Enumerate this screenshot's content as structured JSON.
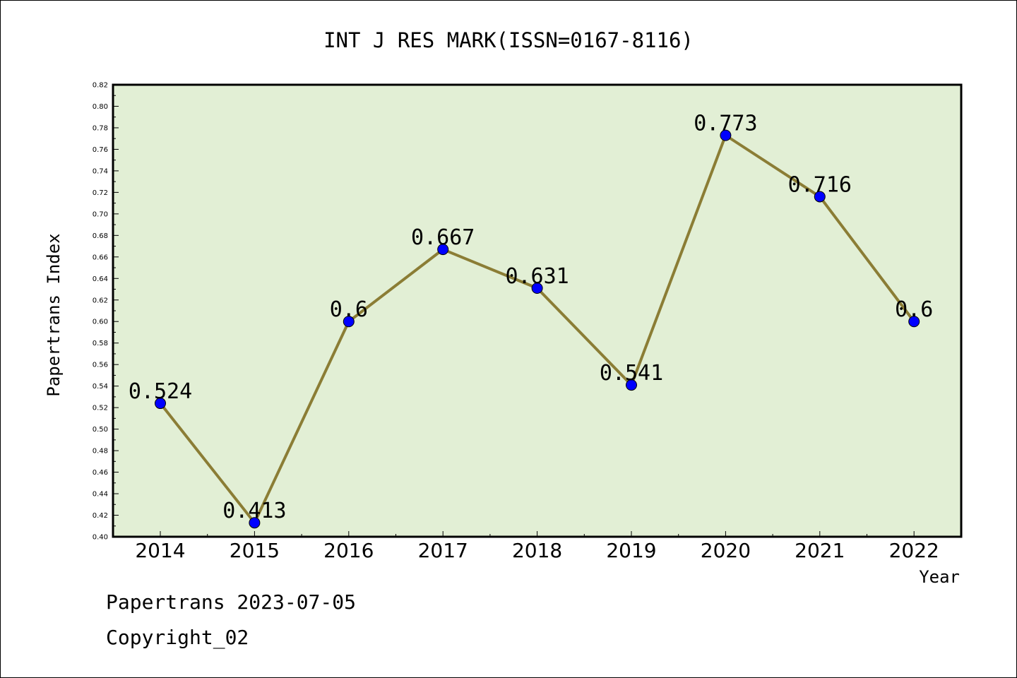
{
  "chart_data": {
    "type": "line",
    "title": "INT J RES MARK(ISSN=0167-8116)",
    "xlabel": "Year",
    "ylabel": "Papertrans Index",
    "categories": [
      "2014",
      "2015",
      "2016",
      "2017",
      "2018",
      "2019",
      "2020",
      "2021",
      "2022"
    ],
    "series": [
      {
        "values": [
          0.524,
          0.413,
          0.6,
          0.667,
          0.631,
          0.541,
          0.773,
          0.716,
          0.6
        ],
        "data_labels": [
          "0.524",
          "0.413",
          "0.6",
          "0.667",
          "0.631",
          "0.541",
          "0.773",
          "0.716",
          "0.6"
        ],
        "line_color": "#8b7d35",
        "marker_color": "#0000ff"
      }
    ],
    "ylim": [
      0.4,
      0.82
    ],
    "yticks": [
      "0.40",
      "0.42",
      "0.44",
      "0.46",
      "0.48",
      "0.50",
      "0.52",
      "0.54",
      "0.56",
      "0.58",
      "0.60",
      "0.62",
      "0.64",
      "0.66",
      "0.68",
      "0.70",
      "0.72",
      "0.74",
      "0.76",
      "0.78",
      "0.80",
      "0.82"
    ],
    "grid": false,
    "plot_background": "#e2efd5"
  },
  "footer": {
    "line1": "Papertrans 2023-07-05",
    "line2": "Copyright_02"
  }
}
